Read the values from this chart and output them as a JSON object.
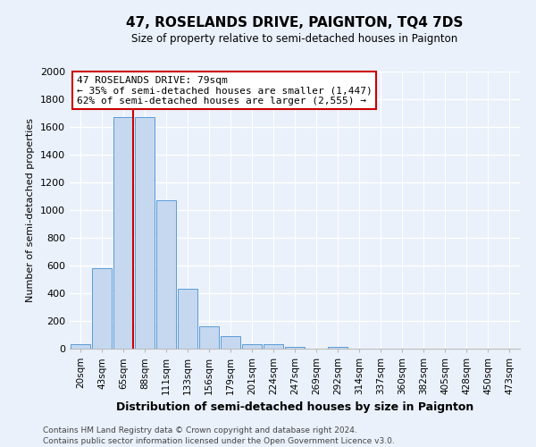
{
  "title": "47, ROSELANDS DRIVE, PAIGNTON, TQ4 7DS",
  "subtitle": "Size of property relative to semi-detached houses in Paignton",
  "xlabel": "Distribution of semi-detached houses by size in Paignton",
  "ylabel": "Number of semi-detached properties",
  "bin_labels": [
    "20sqm",
    "43sqm",
    "65sqm",
    "88sqm",
    "111sqm",
    "133sqm",
    "156sqm",
    "179sqm",
    "201sqm",
    "224sqm",
    "247sqm",
    "269sqm",
    "292sqm",
    "314sqm",
    "337sqm",
    "360sqm",
    "382sqm",
    "405sqm",
    "428sqm",
    "450sqm",
    "473sqm"
  ],
  "bin_values": [
    30,
    580,
    1670,
    1670,
    1070,
    430,
    160,
    90,
    35,
    30,
    15,
    0,
    15,
    0,
    0,
    0,
    0,
    0,
    0,
    0,
    0
  ],
  "bar_color": "#c5d8f0",
  "bar_edge_color": "#5b9bd5",
  "background_color": "#eaf1fb",
  "grid_color": "#ffffff",
  "property_line_color": "#cc0000",
  "annotation_text": "47 ROSELANDS DRIVE: 79sqm\n← 35% of semi-detached houses are smaller (1,447)\n62% of semi-detached houses are larger (2,555) →",
  "annotation_box_edge": "#cc0000",
  "ylim": [
    0,
    2000
  ],
  "yticks": [
    0,
    200,
    400,
    600,
    800,
    1000,
    1200,
    1400,
    1600,
    1800,
    2000
  ],
  "footnote1": "Contains HM Land Registry data © Crown copyright and database right 2024.",
  "footnote2": "Contains public sector information licensed under the Open Government Licence v3.0."
}
